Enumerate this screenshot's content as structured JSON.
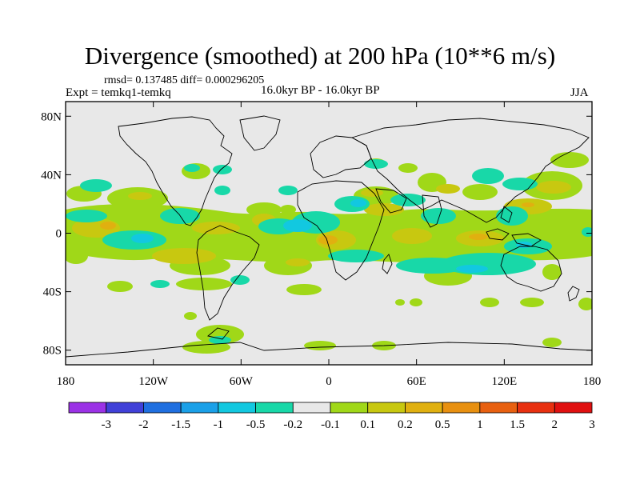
{
  "title": "Divergence (smoothed) at 200 hPa (10**6 m/s)",
  "stats": "rmsd= 0.137485 diff= 0.000296205",
  "expt": "Expt = temkq1-temkq",
  "period": "16.0kyr BP - 16.0kyr BP",
  "season": "JJA",
  "map": {
    "lat_labels": [
      "80N",
      "40N",
      "0",
      "40S",
      "80S"
    ],
    "lat_values": [
      80,
      40,
      0,
      -40,
      -80
    ],
    "lon_labels": [
      "180",
      "120W",
      "60W",
      "0",
      "60E",
      "120E",
      "180"
    ],
    "lon_values": [
      -180,
      -120,
      -60,
      0,
      60,
      120,
      180
    ],
    "lat_range": [
      -90,
      90
    ],
    "lon_range": [
      -180,
      180
    ],
    "background_color": "#e8e8e8"
  },
  "colorbar": {
    "levels": [
      "-3",
      "-2",
      "-1.5",
      "-1",
      "-0.5",
      "-0.2",
      "-0.1",
      "0.1",
      "0.2",
      "0.5",
      "1",
      "1.5",
      "2",
      "3"
    ],
    "colors": [
      "#9b32e6",
      "#4040d8",
      "#1f6fe0",
      "#1aa0e8",
      "#12c8e0",
      "#18d8a8",
      "#e8e8e8",
      "#a0d818",
      "#c8c810",
      "#e0b010",
      "#e89010",
      "#e86010",
      "#e83010",
      "#e01010"
    ]
  }
}
